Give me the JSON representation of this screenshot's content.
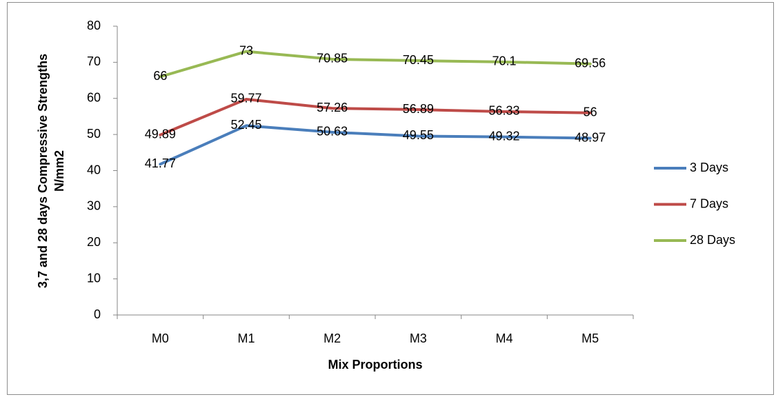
{
  "chart_data": {
    "type": "line",
    "x_label": "Mix Proportions",
    "y_label": [
      "3,7 and 28 days Compressive Strengths",
      "N/mm2"
    ],
    "categories": [
      "M0",
      "M1",
      "M2",
      "M3",
      "M4",
      "M5"
    ],
    "series": [
      {
        "name": "3 Days",
        "color": "#4a7ebb",
        "values": [
          41.77,
          52.45,
          50.63,
          49.55,
          49.32,
          48.97
        ]
      },
      {
        "name": "7 Days",
        "color": "#be4b48",
        "values": [
          49.89,
          59.77,
          57.26,
          56.89,
          56.33,
          56
        ]
      },
      {
        "name": "28 Days",
        "color": "#98b954",
        "values": [
          66,
          73,
          70.85,
          70.45,
          70.1,
          69.56
        ]
      }
    ],
    "ylim": [
      0,
      80
    ],
    "yticks": [
      0,
      10,
      20,
      30,
      40,
      50,
      60,
      70,
      80
    ],
    "grid": false,
    "legend": "right"
  }
}
